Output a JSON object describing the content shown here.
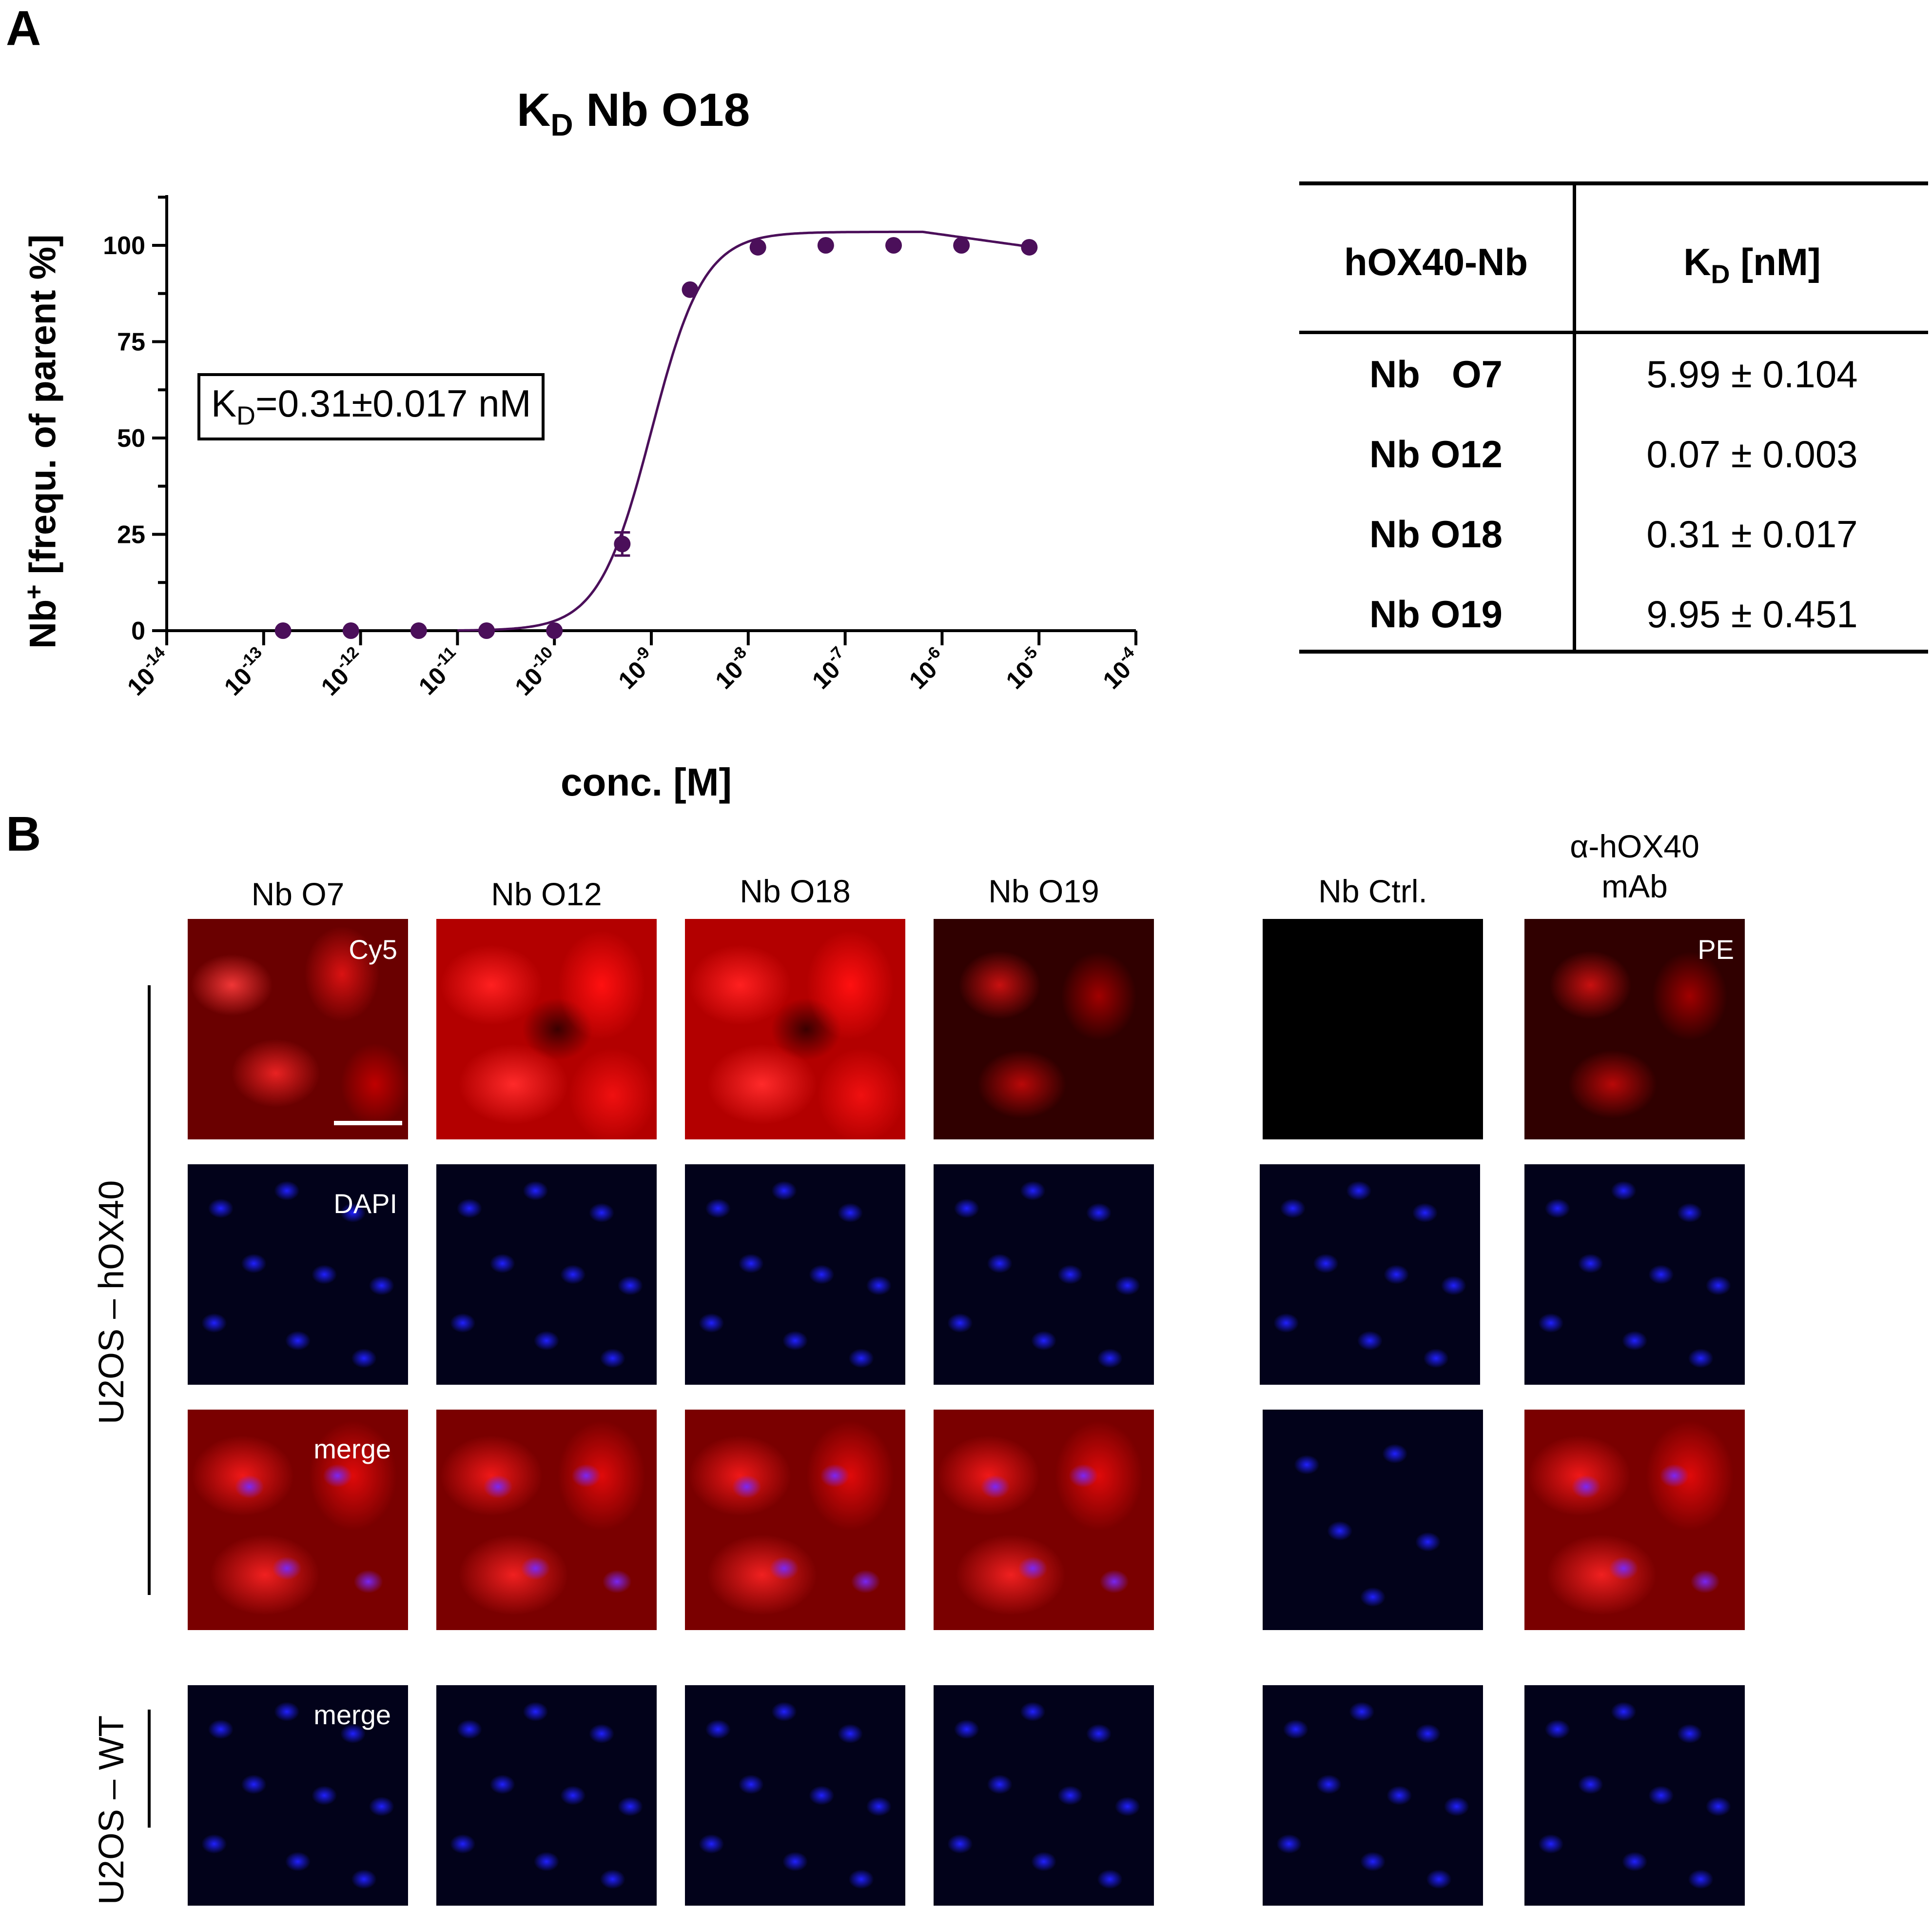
{
  "panel_a": {
    "letter": "A",
    "chart_title_main": "K",
    "chart_title_sub": "D",
    "chart_title_rest": " Nb O18",
    "kd_box_main": "K",
    "kd_box_sub": "D",
    "kd_box_rest": "=0.31±0.017 nM"
  },
  "chart_data": {
    "type": "scatter",
    "title": "KD Nb O18",
    "xlabel": "conc. [M]",
    "ylabel_pre": "Nb",
    "ylabel_sup": "+",
    "ylabel_rest": " [frequ. of parent %]",
    "x_scale": "log10",
    "xlim_exp": [
      -14,
      -4
    ],
    "ylim": [
      0,
      115
    ],
    "y_ticks": [
      0,
      25,
      50,
      75,
      100
    ],
    "x_tick_exponents": [
      -14,
      -13,
      -12,
      -11,
      -10,
      -9,
      -8,
      -7,
      -6,
      -5,
      -4
    ],
    "x_tick_base": "10",
    "x_tick_labels": [
      "-14",
      "-13",
      "-12",
      "-11",
      "-10",
      "-9",
      "-8",
      "-7",
      "-6",
      "-5",
      "-4"
    ],
    "points": [
      {
        "log_x": -12.8,
        "y": 0
      },
      {
        "log_x": -12.1,
        "y": 0
      },
      {
        "log_x": -11.4,
        "y": 0
      },
      {
        "log_x": -10.7,
        "y": 0
      },
      {
        "log_x": -10.0,
        "y": 0
      },
      {
        "log_x": -9.3,
        "y": 22.5,
        "err": 3
      },
      {
        "log_x": -8.6,
        "y": 88.5
      },
      {
        "log_x": -7.9,
        "y": 99.5
      },
      {
        "log_x": -7.2,
        "y": 100
      },
      {
        "log_x": -6.5,
        "y": 100
      },
      {
        "log_x": -5.8,
        "y": 100
      },
      {
        "log_x": -5.1,
        "y": 99.5
      }
    ],
    "fit": {
      "log_ec50": -9.0,
      "hill": 1.6,
      "top": 103.5,
      "bottom": 0
    },
    "color": "#4b0f5a"
  },
  "kd_table": {
    "header_col1": "hOX40-Nb",
    "header_col2_main": "K",
    "header_col2_sub": "D",
    "header_col2_rest": " [nM]",
    "rows": [
      {
        "name": "Nb   O7",
        "kd": "5.99 ± 0.104"
      },
      {
        "name": "Nb O12",
        "kd": "0.07 ± 0.003"
      },
      {
        "name": "Nb O18",
        "kd": "0.31 ± 0.017"
      },
      {
        "name": "Nb O19",
        "kd": "9.95 ± 0.451"
      }
    ]
  },
  "panel_b": {
    "letter": "B",
    "columns": [
      "Nb O7",
      "Nb O12",
      "Nb O18",
      "Nb O19",
      "Nb Ctrl.",
      "α-hOX40",
      "mAb"
    ],
    "row_group_1": "U2OS – hOX40",
    "row_group_2": "U2OS – WT",
    "channel_labels": {
      "cy5": "Cy5",
      "dapi": "DAPI",
      "merge": "merge",
      "merge_wt": "merge",
      "pe": "PE"
    }
  }
}
